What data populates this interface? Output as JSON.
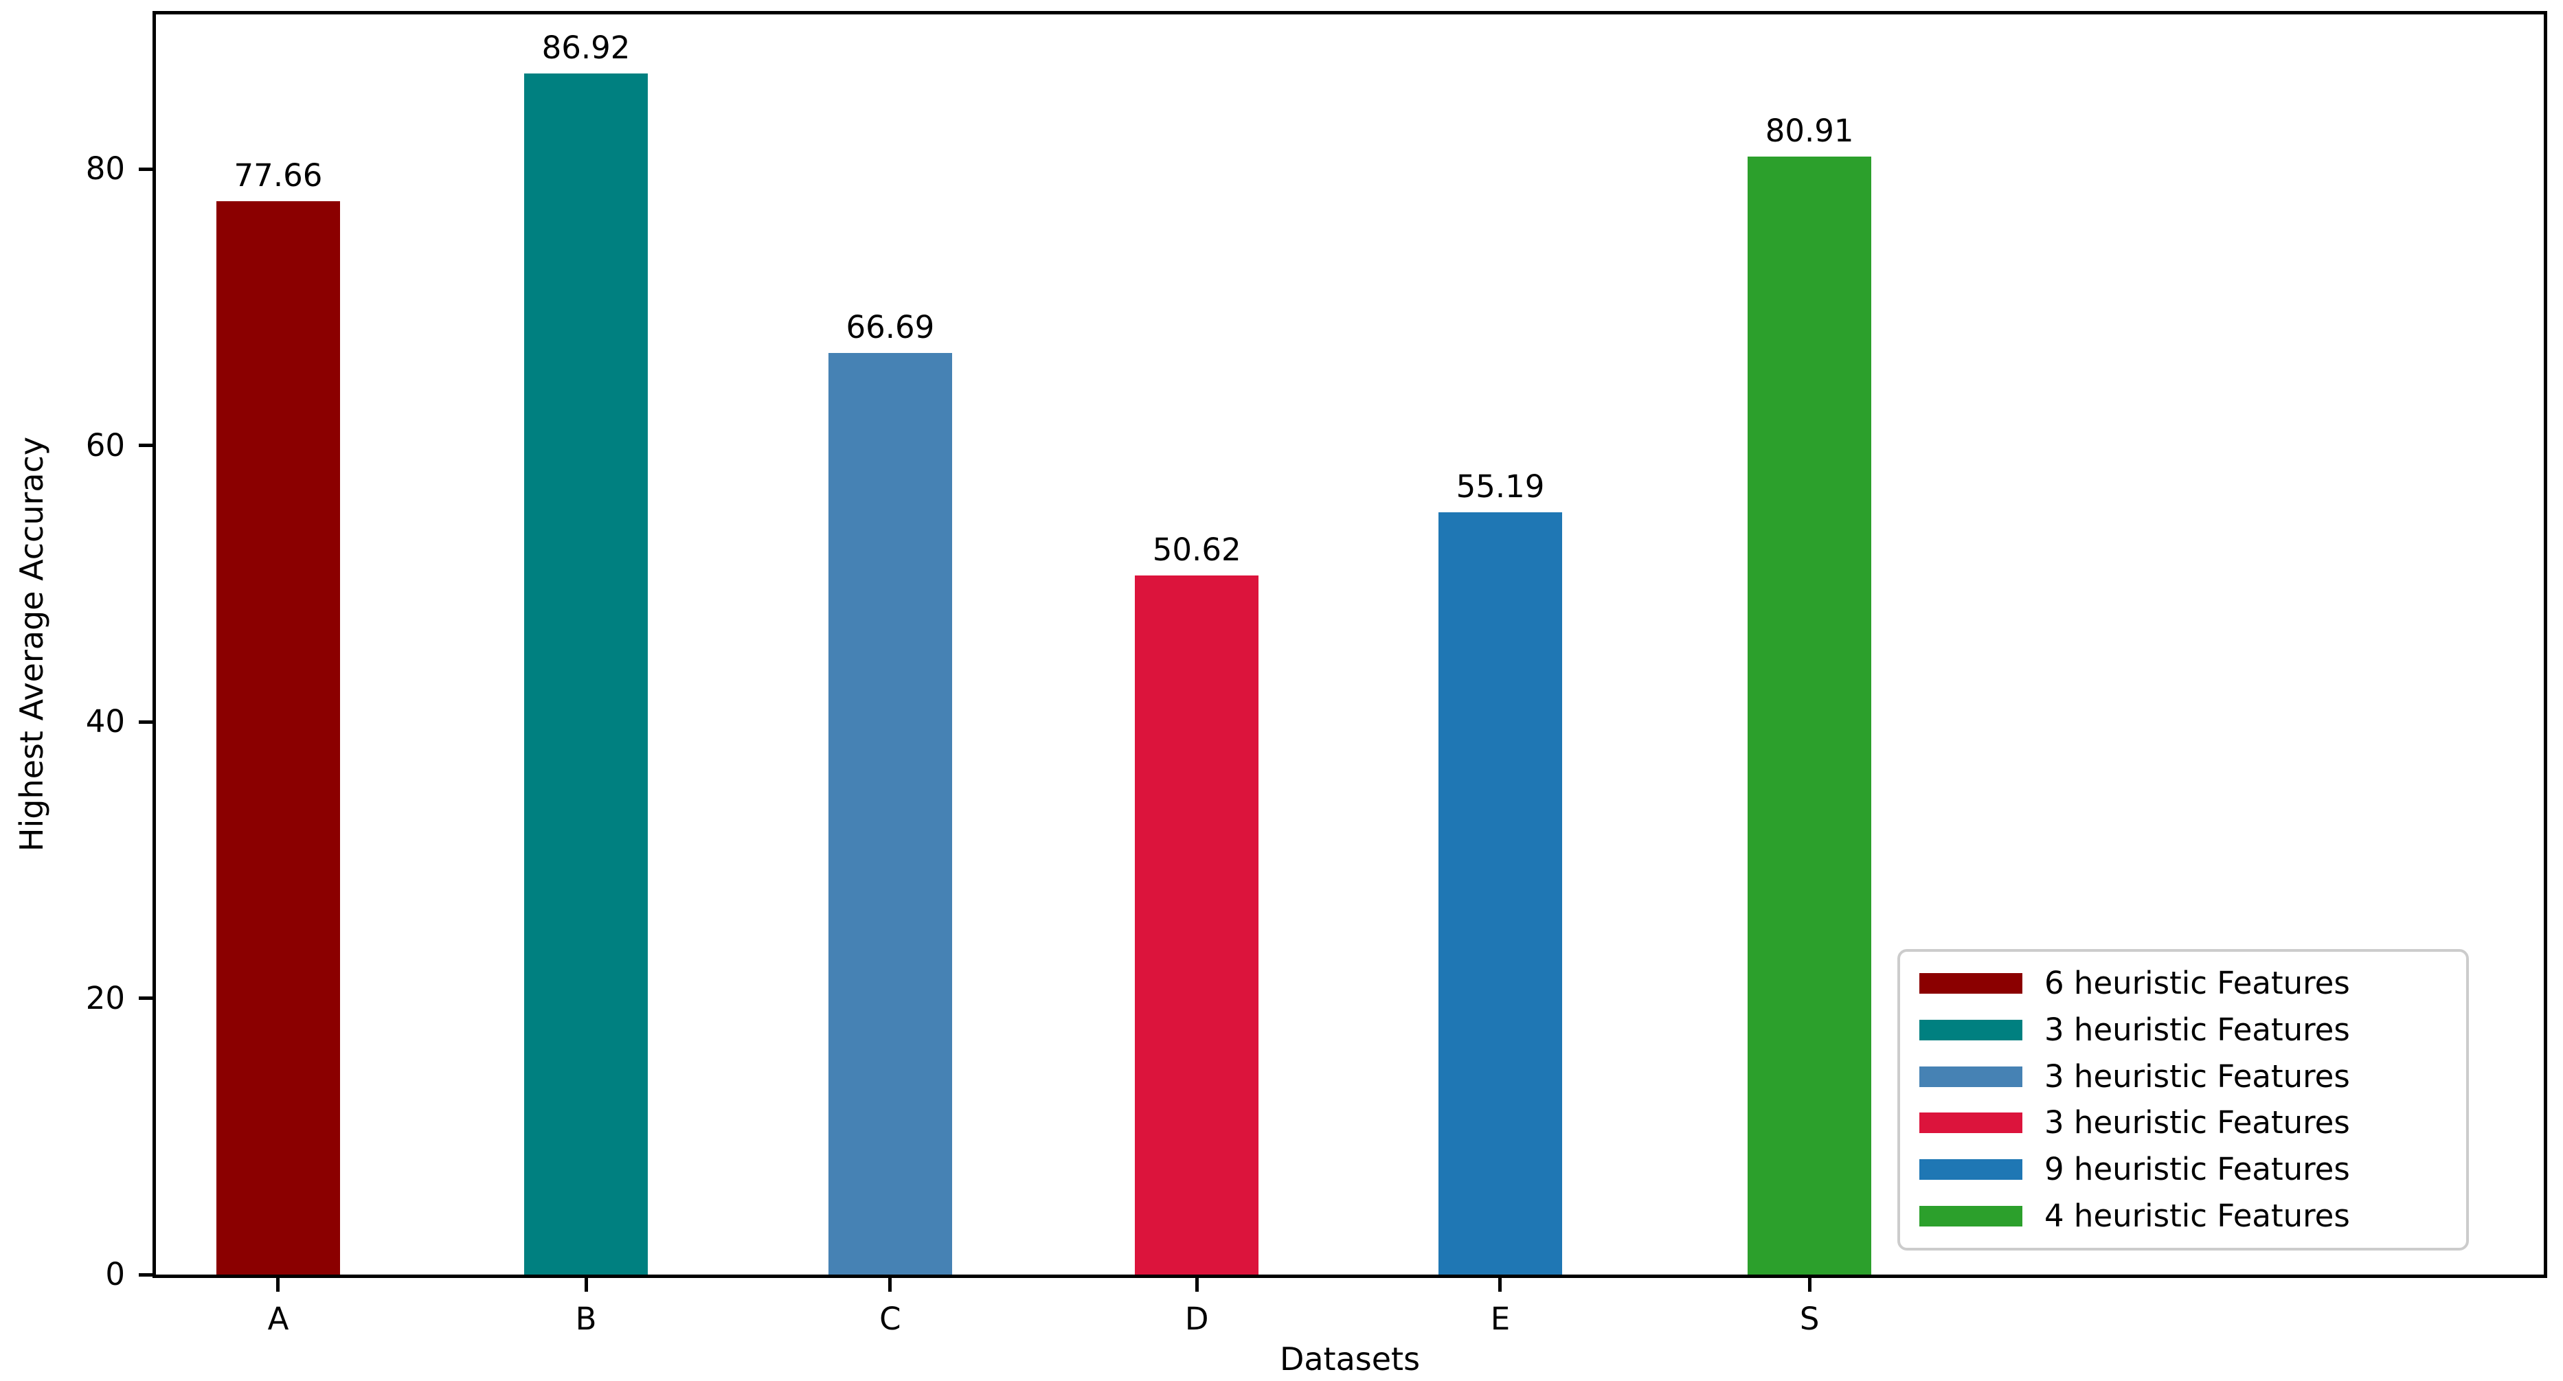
{
  "chart_data": {
    "type": "bar",
    "title": "",
    "xlabel": "Datasets",
    "ylabel": "Highest Average Accuracy",
    "categories": [
      "A",
      "B",
      "C",
      "D",
      "E",
      "S"
    ],
    "values": [
      77.66,
      86.92,
      66.69,
      50.62,
      55.19,
      80.91
    ],
    "value_labels": [
      "77.66",
      "86.92",
      "66.69",
      "50.62",
      "55.19",
      "80.91"
    ],
    "bar_colors": [
      "#8B0000",
      "#008080",
      "#4682B4",
      "#DC143C",
      "#1F77B4",
      "#2CA02C"
    ],
    "yticks": [
      0,
      20,
      40,
      60,
      80
    ],
    "ylim": [
      0,
      91.2
    ],
    "grid": false,
    "legend": {
      "position": "lower right",
      "entries": [
        {
          "label": "6 heuristic Features",
          "color": "#8B0000"
        },
        {
          "label": "3 heuristic Features",
          "color": "#008080"
        },
        {
          "label": "3 heuristic Features",
          "color": "#4682B4"
        },
        {
          "label": "3 heuristic Features",
          "color": "#DC143C"
        },
        {
          "label": "9 heuristic Features",
          "color": "#1F77B4"
        },
        {
          "label": "4 heuristic Features",
          "color": "#2CA02C"
        }
      ]
    },
    "layout": {
      "bar_centers_pct": [
        5.12,
        18.01,
        30.75,
        43.59,
        56.3,
        69.25
      ],
      "bar_width_pct": 5.18
    }
  }
}
